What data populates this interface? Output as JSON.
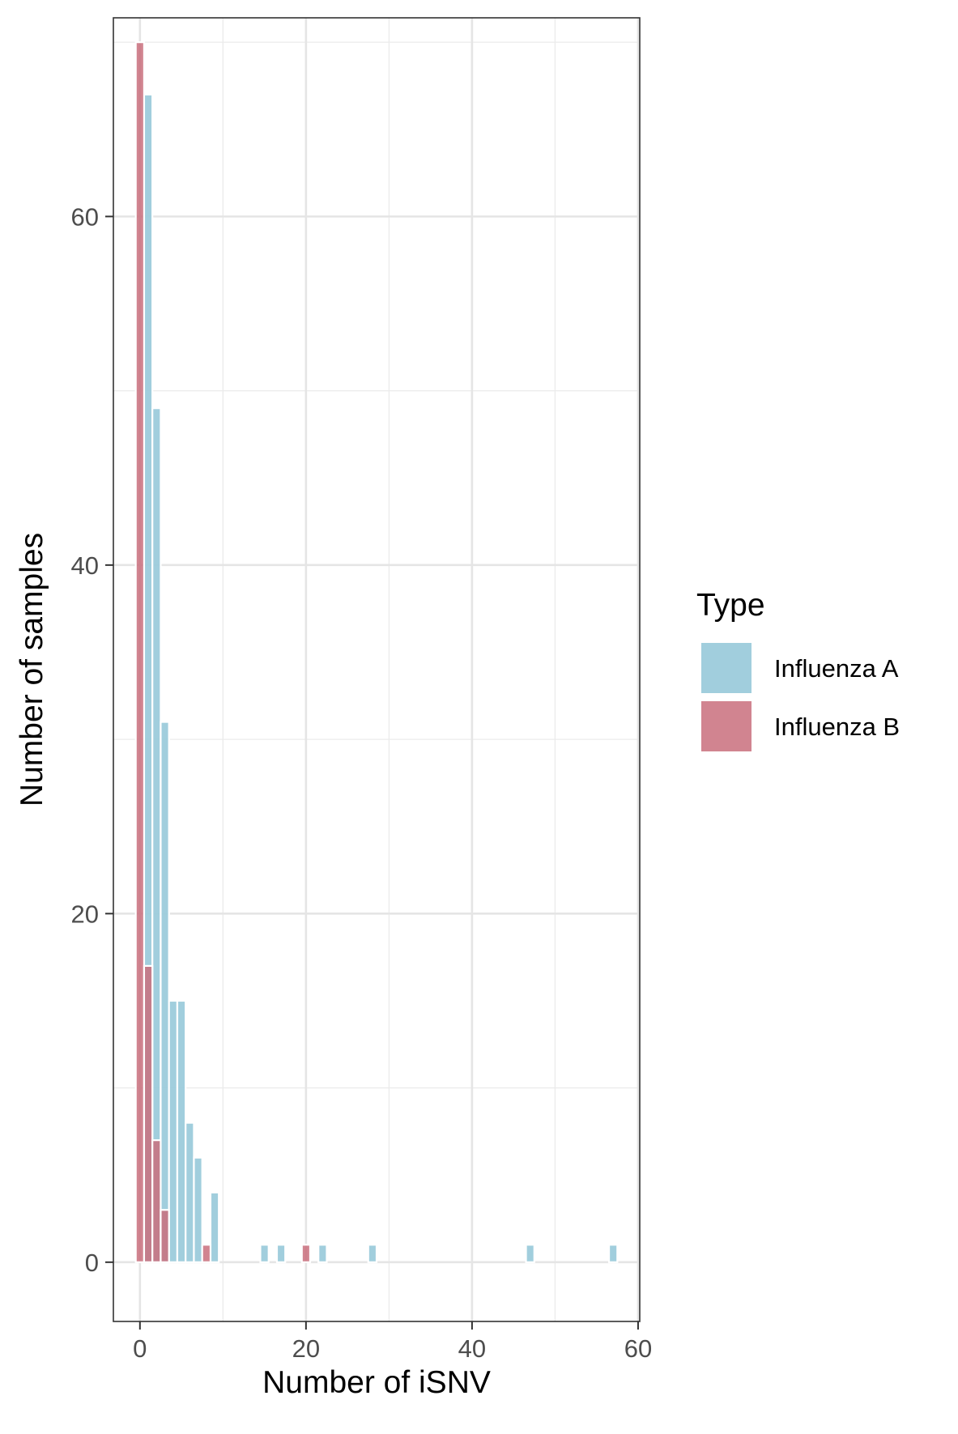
{
  "chart_data": {
    "type": "bar",
    "title": "",
    "xlabel": "Number of iSNV",
    "ylabel": "Number of samples",
    "xlim": [
      -3.2,
      60.2
    ],
    "ylim": [
      -3.4,
      71.4
    ],
    "x_ticks": [
      0,
      20,
      40,
      60
    ],
    "y_ticks": [
      0,
      20,
      40,
      60
    ],
    "grid": true,
    "legend": {
      "title": "Type",
      "position": "right",
      "entries": [
        "Influenza A",
        "Influenza B"
      ]
    },
    "series": [
      {
        "name": "Influenza A",
        "color": "#9ccbdb",
        "x": [
          1,
          2,
          3,
          4,
          5,
          6,
          7,
          9,
          15,
          17,
          22,
          28,
          47,
          57
        ],
        "values": [
          67,
          49,
          31,
          15,
          15,
          8,
          6,
          4,
          1,
          1,
          1,
          1,
          1,
          1
        ]
      },
      {
        "name": "Influenza B",
        "color": "#c96f7d",
        "x": [
          0,
          1,
          2,
          3,
          8,
          20
        ],
        "values": [
          70,
          17,
          7,
          3,
          1,
          1
        ]
      }
    ]
  }
}
